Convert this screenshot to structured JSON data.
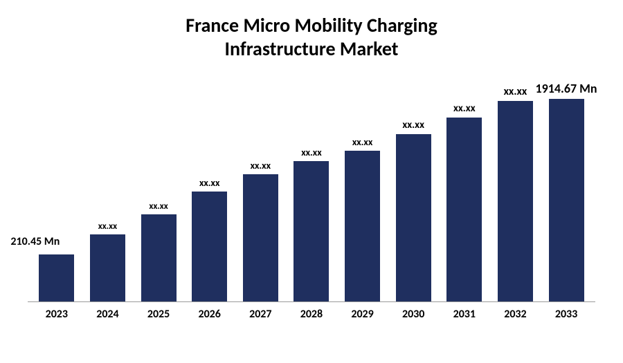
{
  "chart": {
    "type": "bar",
    "title_line1": "France Micro Mobility Charging",
    "title_line2": "Infrastructure Market",
    "title_fontsize": 28,
    "categories": [
      "2023",
      "2024",
      "2025",
      "2026",
      "2027",
      "2028",
      "2029",
      "2030",
      "2031",
      "2032",
      "2033"
    ],
    "values": [
      70,
      100,
      130,
      165,
      190,
      210,
      225,
      250,
      275,
      300,
      310
    ],
    "max_height": 310,
    "labels": [
      "210.45 Mn",
      "xx.xx",
      "xx.xx",
      "xx.xx",
      "xx.xx",
      "xx.xx",
      "xx.xx",
      "xx.xx",
      "xx.xx",
      "xx.xx",
      "1914.67 Mn"
    ],
    "label_fontsizes": [
      16,
      13,
      13,
      14,
      14,
      14,
      14,
      15,
      15,
      16,
      18
    ],
    "bar_color": "#1f2f5f",
    "background_color": "#ffffff",
    "axis_color": "#999999",
    "xlabel_fontsize": 16,
    "bar_width_pct": 70,
    "first_label_offset": true
  }
}
